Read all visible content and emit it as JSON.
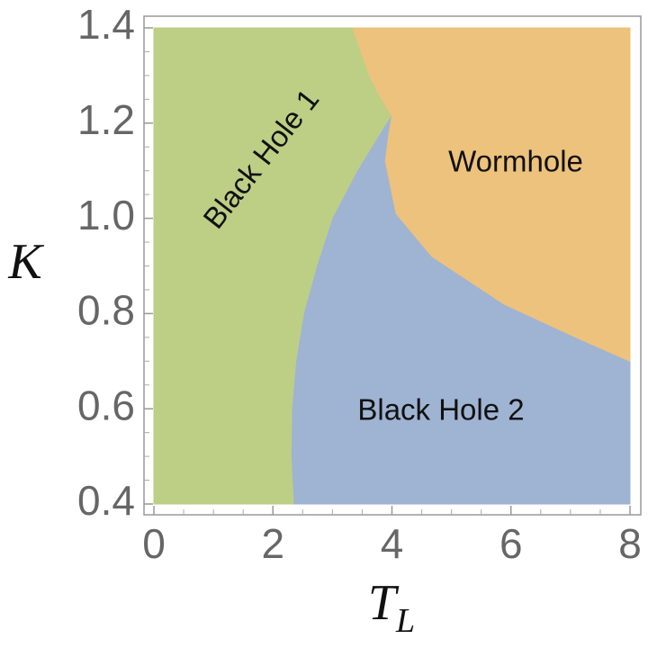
{
  "chart_data": {
    "type": "region",
    "xlabel": {
      "main": "T",
      "sub": "L"
    },
    "ylabel": "K",
    "xlim": [
      0,
      8
    ],
    "ylim": [
      0.4,
      1.4
    ],
    "xticks": [
      0,
      2,
      4,
      6,
      8
    ],
    "yticks": [
      0.4,
      0.6,
      0.8,
      {
        "value": 1,
        "label": "1.0"
      },
      1.2,
      1.4
    ],
    "xminorticks": [
      0.5,
      1,
      1.5,
      2.5,
      3,
      3.5,
      4.5,
      5,
      5.5,
      6.5,
      7,
      7.5
    ],
    "yminorticks": [
      0.45,
      0.5,
      0.55,
      0.65,
      0.7,
      0.75,
      0.85,
      0.9,
      0.95,
      1.05,
      1.1,
      1.15,
      1.25,
      1.3,
      1.35
    ],
    "regions": [
      {
        "name": "Black Hole 1",
        "color": "#bccf85",
        "x": [
          0,
          2.36,
          2.32,
          2.33,
          2.4,
          2.53,
          2.75,
          3.01,
          3.43,
          3.92,
          4.0,
          3.78,
          3.62,
          3.34,
          0
        ],
        "y": [
          0.4,
          0.4,
          0.5,
          0.6,
          0.7,
          0.8,
          0.9,
          1.0,
          1.1,
          1.2,
          1.215,
          1.26,
          1.3,
          1.4,
          1.4
        ]
      },
      {
        "name": "Black Hole 2",
        "color": "#9fb3d3",
        "x": [
          2.36,
          8,
          8,
          7.09,
          5.88,
          4.67,
          4.07,
          3.89,
          3.95,
          4.0,
          3.92,
          3.43,
          3.01,
          2.75,
          2.53,
          2.4,
          2.33,
          2.32
        ],
        "y": [
          0.4,
          0.4,
          0.7,
          0.75,
          0.82,
          0.92,
          1.01,
          1.12,
          1.18,
          1.215,
          1.2,
          1.1,
          1.0,
          0.9,
          0.8,
          0.7,
          0.6,
          0.5
        ]
      },
      {
        "name": "Wormhole",
        "color": "#ecc27c",
        "x": [
          3.34,
          8,
          8,
          7.09,
          5.88,
          4.67,
          4.07,
          3.89,
          3.95,
          4.0,
          3.78,
          3.62
        ],
        "y": [
          1.4,
          1.4,
          0.7,
          0.75,
          0.82,
          0.92,
          1.01,
          1.12,
          1.18,
          1.215,
          1.26,
          1.3
        ]
      }
    ]
  }
}
